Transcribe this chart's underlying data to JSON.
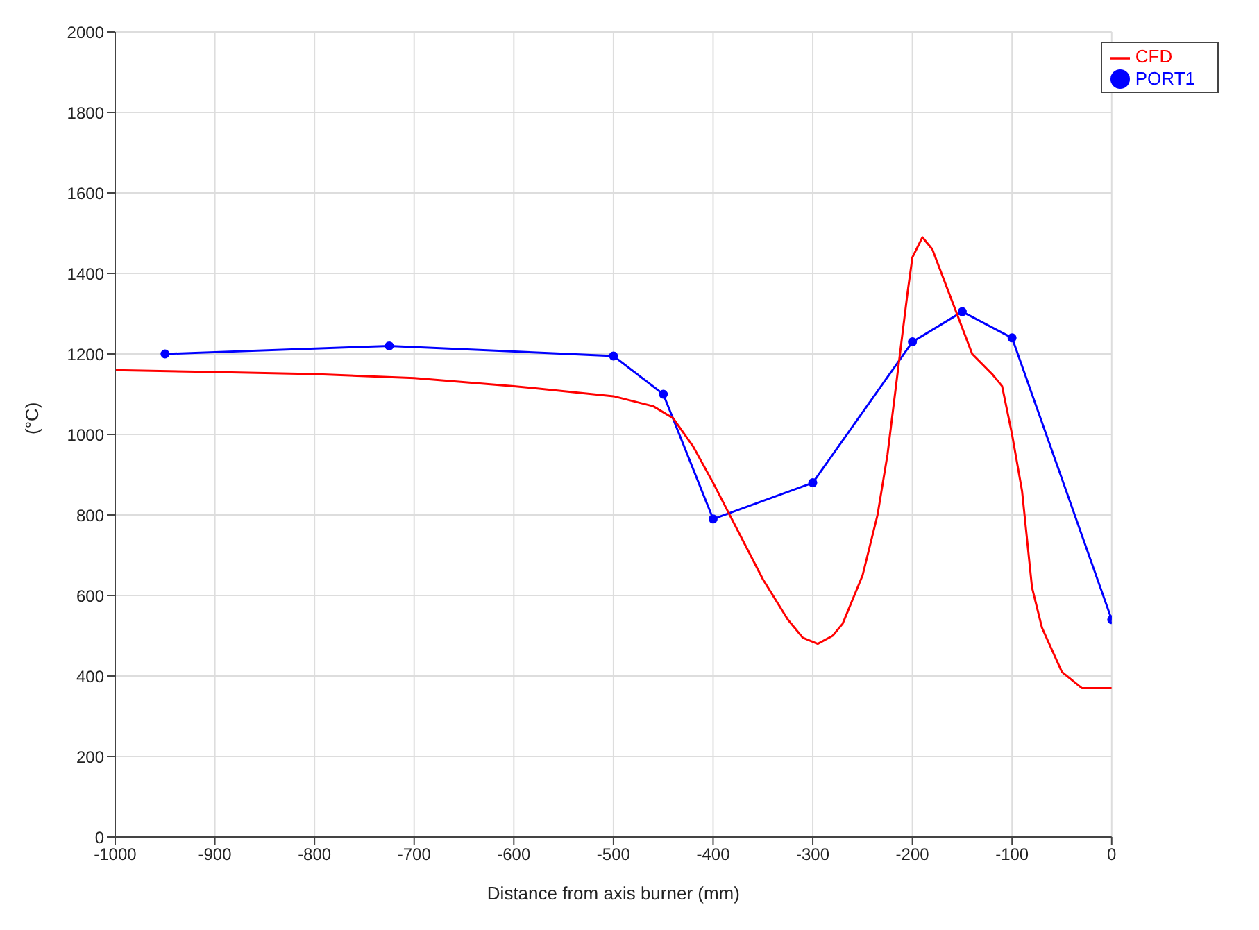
{
  "chart_data": {
    "type": "line",
    "xlabel": "Distance from axis burner (mm)",
    "ylabel": "(°C)",
    "xlim": [
      -1000,
      0
    ],
    "xticks": [
      -1000,
      -900,
      -800,
      -700,
      -600,
      -500,
      -400,
      -300,
      -200,
      -100,
      0
    ],
    "ylim": [
      0,
      2000
    ],
    "yticks": [
      0,
      200,
      400,
      600,
      800,
      1000,
      1200,
      1400,
      1600,
      1800,
      2000
    ],
    "grid": true,
    "legend": "top right",
    "series": [
      {
        "name": "PORT1",
        "color": "#0000ff",
        "marker": "circle",
        "x": [
          -950,
          -725,
          -500,
          -450,
          -400,
          -300,
          -200,
          -150,
          -100,
          0
        ],
        "values": [
          1200,
          1220,
          1195,
          1100,
          790,
          880,
          1230,
          1305,
          1240,
          540
        ]
      },
      {
        "name": "CFD",
        "color": "#ff0000",
        "marker": "none",
        "x": [
          -1000,
          -900,
          -800,
          -700,
          -600,
          -500,
          -460,
          -440,
          -420,
          -400,
          -375,
          -350,
          -325,
          -310,
          -295,
          -280,
          -270,
          -250,
          -235,
          -225,
          -215,
          -205,
          -200,
          -190,
          -180,
          -160,
          -140,
          -120,
          -110,
          -100,
          -90,
          -80,
          -70,
          -50,
          -30,
          0
        ],
        "values": [
          1160,
          1155,
          1150,
          1140,
          1120,
          1095,
          1070,
          1040,
          970,
          880,
          760,
          640,
          540,
          495,
          480,
          500,
          530,
          650,
          800,
          950,
          1150,
          1350,
          1440,
          1490,
          1460,
          1330,
          1200,
          1150,
          1120,
          1000,
          860,
          620,
          520,
          410,
          370,
          370
        ]
      }
    ]
  }
}
